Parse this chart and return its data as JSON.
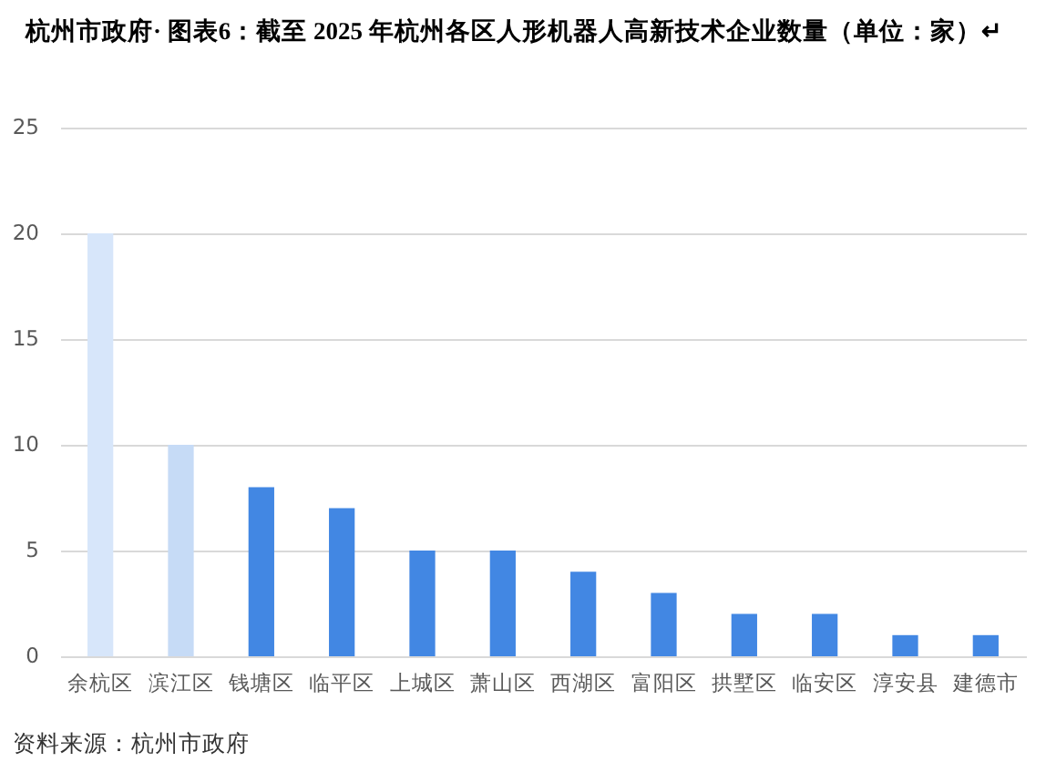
{
  "chart_data": {
    "type": "bar",
    "title": "杭州市政府· 图表6：截至 2025 年杭州各区人形机器人高新技术企业数量（单位：家）↵",
    "categories": [
      "余杭区",
      "滨江区",
      "钱塘区",
      "临平区",
      "上城区",
      "萧山区",
      "西湖区",
      "富阳区",
      "拱墅区",
      "临安区",
      "淳安县",
      "建德市"
    ],
    "values": [
      20,
      10,
      8,
      7,
      5,
      5,
      4,
      3,
      2,
      2,
      1,
      1
    ],
    "colors": [
      "#d7e6fa",
      "#c6dbf6",
      "#4287e3",
      "#4287e3",
      "#4287e3",
      "#4287e3",
      "#4287e3",
      "#4287e3",
      "#4287e3",
      "#4287e3",
      "#4287e3",
      "#4287e3"
    ],
    "ylim": [
      0,
      25
    ],
    "yticks": [
      0,
      5,
      10,
      15,
      20,
      25
    ],
    "grid": "y",
    "annotations": [
      "资料来源：杭州市政府"
    ]
  }
}
